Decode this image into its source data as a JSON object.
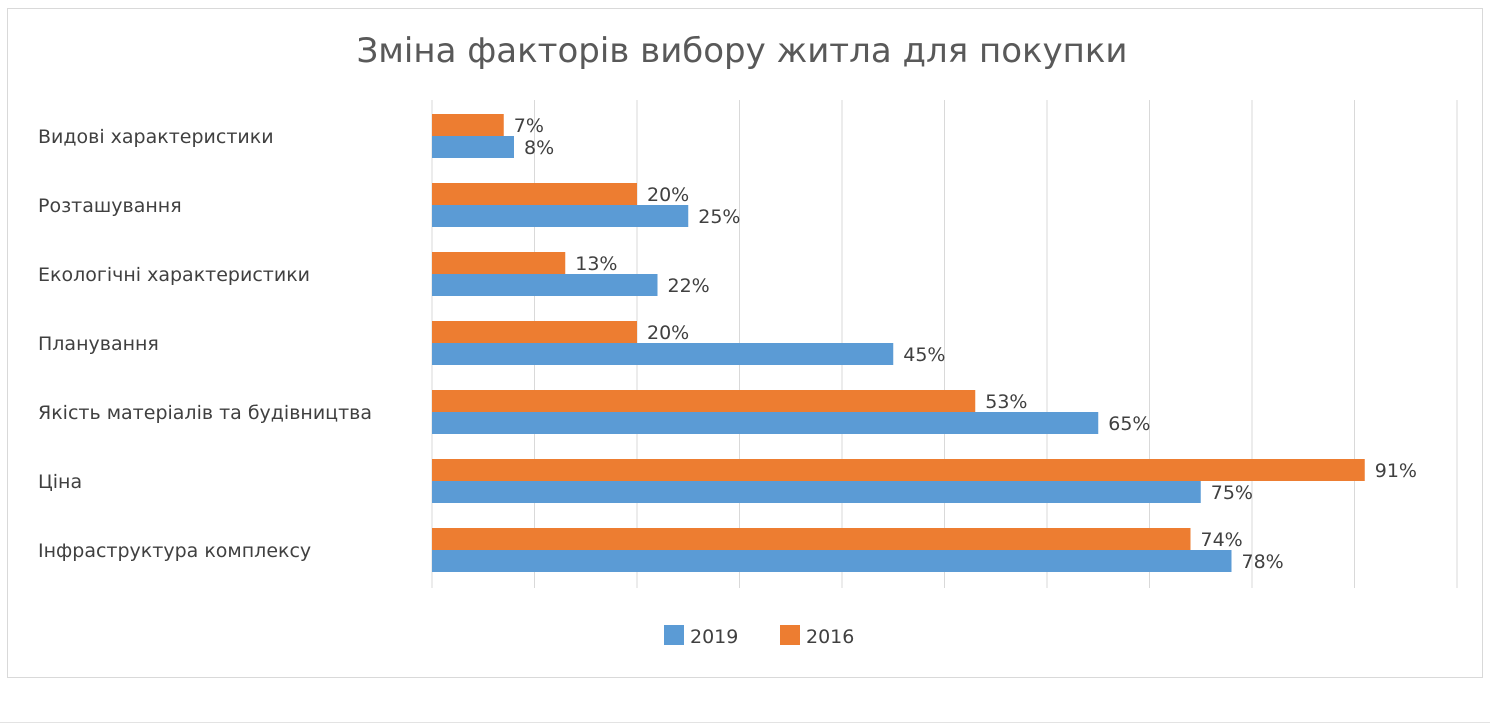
{
  "chart_data": {
    "type": "bar",
    "orientation": "horizontal",
    "title": "Зміна факторів вибору житла для покупки",
    "categories": [
      "Видові характеристики",
      "Розташування",
      "Екологічні характеристики",
      "Планування",
      "Якість матеріалів та будівництва",
      "Ціна",
      "Інфраструктура комплексу"
    ],
    "series": [
      {
        "name": "2016",
        "color": "#ed7d31",
        "values": [
          7,
          20,
          13,
          20,
          53,
          91,
          74
        ],
        "labels": [
          "7%",
          "20%",
          "13%",
          "20%",
          "53%",
          "91%",
          "74%"
        ]
      },
      {
        "name": "2019",
        "color": "#5b9bd5",
        "values": [
          8,
          25,
          22,
          45,
          65,
          75,
          78
        ],
        "labels": [
          "8%",
          "25%",
          "22%",
          "45%",
          "65%",
          "75%",
          "78%"
        ]
      }
    ],
    "legend_order": [
      "2019",
      "2016"
    ],
    "xlim": [
      0,
      100
    ],
    "grid": true,
    "legend_position": "bottom",
    "xlabel": "",
    "ylabel": ""
  }
}
